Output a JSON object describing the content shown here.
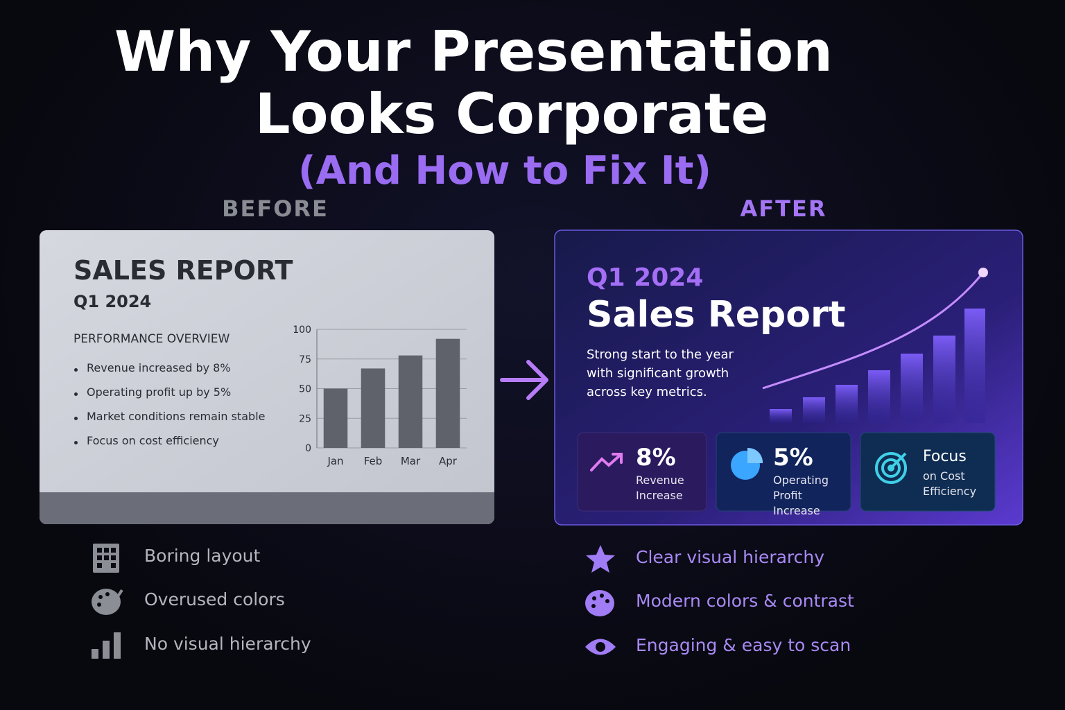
{
  "header": {
    "title_line1": "Why Your Presentation",
    "title_line2": "Looks Corporate",
    "subtitle": "(And How to Fix It)"
  },
  "before": {
    "label": "BEFORE",
    "slide": {
      "title": "SALES REPORT",
      "period": "Q1 2024",
      "section": "PERFORMANCE OVERVIEW",
      "bullets": [
        "Revenue increased by 8%",
        "Operating profit up by 5%",
        "Market conditions remain stable",
        "Focus on cost efficiency"
      ]
    },
    "issues": [
      "Boring layout",
      "Overused colors",
      "No visual hierarchy"
    ]
  },
  "after": {
    "label": "AFTER",
    "slide": {
      "period": "Q1 2024",
      "title": "Sales Report",
      "description": "Strong start to the year with significant growth across key metrics.",
      "stats": [
        {
          "value": "8%",
          "label": "Revenue Increase"
        },
        {
          "value": "5%",
          "label": "Operating Profit Increase"
        },
        {
          "value": "Focus",
          "label": "on Cost Efficiency"
        }
      ]
    },
    "benefits": [
      "Clear visual hierarchy",
      "Modern colors & contrast",
      "Engaging & easy to scan"
    ]
  },
  "chart_data": {
    "type": "bar",
    "categories": [
      "Jan",
      "Feb",
      "Mar",
      "Apr"
    ],
    "values": [
      50,
      67,
      78,
      92
    ],
    "color": "#5f626b",
    "ylim": [
      0,
      100
    ],
    "yticks": [
      0,
      25,
      50,
      75,
      100
    ],
    "grid": true
  }
}
